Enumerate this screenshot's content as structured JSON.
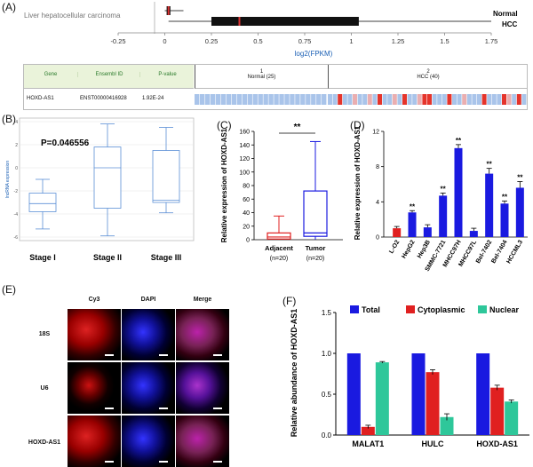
{
  "panel_labels": {
    "A": "(A)",
    "B": "(B)",
    "C": "(C)",
    "D": "(D)",
    "E": "(E)",
    "F": "(F)"
  },
  "panelA": {
    "chart_data": {
      "type": "box",
      "title": "Liver hepatocellular carcinoma",
      "xlabel": "log2(FPKM)",
      "xlim": [
        -0.25,
        1.75
      ],
      "ticks": [
        "-0.25",
        "0",
        "0.25",
        "0.5",
        "0.75",
        "1",
        "1.25",
        "1.5",
        "1.75"
      ],
      "series": [
        {
          "name": "Normal",
          "min": 0.0,
          "q1": 0.01,
          "median": 0.02,
          "q3": 0.03,
          "max": 0.1,
          "color": "#d33"
        },
        {
          "name": "HCC",
          "min": 0.02,
          "q1": 0.25,
          "median": 0.4,
          "q3": 1.04,
          "max": 1.75,
          "color": "#d33"
        }
      ]
    },
    "table": {
      "headers": [
        "Gene",
        "Ensembl ID",
        "P-value"
      ],
      "group1": {
        "number": "1",
        "label": "Normal (25)"
      },
      "group2": {
        "number": "2",
        "label": "HCC (40)"
      },
      "row": {
        "gene": "HOXD-AS1",
        "ensembl": "ENST00000416928",
        "pvalue": "1.92E-24"
      }
    }
  },
  "panelB": {
    "chart_data": {
      "type": "box",
      "annotation": "P=0.046556",
      "ylabel": "lncRNA expression",
      "ylim": [
        -6,
        4
      ],
      "yticks": [
        "-6",
        "-4",
        "-2",
        "0",
        "2",
        "4"
      ],
      "categories": [
        "Stage I",
        "Stage II",
        "Stage III"
      ],
      "boxes": [
        {
          "min": -5.3,
          "q1": -3.8,
          "median": -3.1,
          "q3": -2.2,
          "max": -1.0
        },
        {
          "min": -5.9,
          "q1": -3.5,
          "median": 0.0,
          "q3": 1.8,
          "max": 3.8
        },
        {
          "min": -3.9,
          "q1": -3.0,
          "median": -2.8,
          "q3": 1.5,
          "max": 3.5
        }
      ]
    }
  },
  "panelC": {
    "chart_data": {
      "type": "box",
      "ylabel": "Relative expression of HOXD-AS1",
      "ylim": [
        0,
        160
      ],
      "yticks": [
        "0",
        "20",
        "40",
        "60",
        "80",
        "100",
        "120",
        "140",
        "160"
      ],
      "categories": [
        "Adjacent",
        "Tumor"
      ],
      "sublabels": [
        "(n=20)",
        "(n=20)"
      ],
      "significance": "**",
      "boxes": [
        {
          "min": 0,
          "q1": 1,
          "median": 4,
          "q3": 10,
          "max": 35,
          "color": "#e02020"
        },
        {
          "min": 0,
          "q1": 5,
          "median": 10,
          "q3": 72,
          "max": 145,
          "color": "#1a1ae0"
        }
      ]
    }
  },
  "panelD": {
    "chart_data": {
      "type": "bar",
      "ylabel": "Relative expression of HOXD-AS1",
      "ylim": [
        0,
        12
      ],
      "yticks": [
        "0",
        "4",
        "8",
        "12"
      ],
      "categories": [
        "L-O2",
        "HepG2",
        "Hep3B",
        "SMMC-7721",
        "MHCC97H",
        "MHCC97L",
        "Bel-7402",
        "Bel-7404",
        "HCCML3"
      ],
      "values": [
        1.0,
        2.8,
        1.1,
        4.7,
        10.1,
        0.7,
        7.2,
        3.8,
        5.6
      ],
      "errors": [
        0.2,
        0.2,
        0.3,
        0.3,
        0.4,
        0.3,
        0.6,
        0.3,
        0.7
      ],
      "significance": [
        "",
        "**",
        "",
        "**",
        "**",
        "",
        "**",
        "**",
        "**"
      ],
      "colors": {
        "control": "#e02020",
        "cells": "#1a1ae0"
      }
    }
  },
  "panelE": {
    "col_headers": [
      "Cy3",
      "DAPI",
      "Merge"
    ],
    "row_labels": [
      "18S",
      "U6",
      "HOXD-AS1"
    ]
  },
  "panelF": {
    "chart_data": {
      "type": "bar",
      "ylabel": "Relative abundance of HOXD-AS1",
      "ylim": [
        0,
        1.5
      ],
      "yticks": [
        "0.0",
        "0.5",
        "1.0",
        "1.5"
      ],
      "categories": [
        "MALAT1",
        "HULC",
        "HOXD-AS1"
      ],
      "series": [
        {
          "name": "Total",
          "values": [
            1.0,
            1.0,
            1.0
          ],
          "errors": [
            0,
            0,
            0
          ],
          "color": "#1a1ae0"
        },
        {
          "name": "Cytoplasmic",
          "values": [
            0.1,
            0.77,
            0.58
          ],
          "errors": [
            0.02,
            0.03,
            0.03
          ],
          "color": "#e02020"
        },
        {
          "name": "Nuclear",
          "values": [
            0.89,
            0.22,
            0.41
          ],
          "errors": [
            0.01,
            0.04,
            0.02
          ],
          "color": "#2ec79a"
        }
      ]
    }
  }
}
